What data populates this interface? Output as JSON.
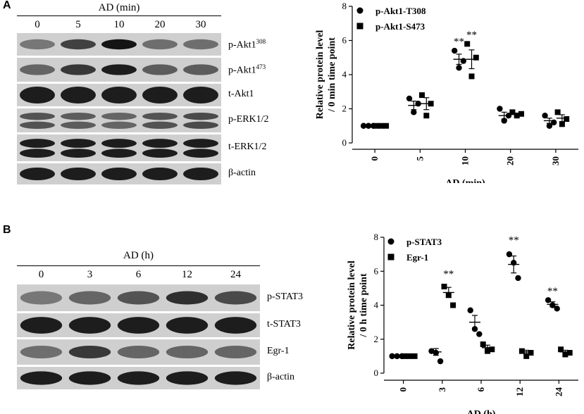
{
  "figure": {
    "panelA": {
      "letter": "A",
      "blot": {
        "title": "AD (min)",
        "lanes": [
          "0",
          "5",
          "10",
          "20",
          "30"
        ],
        "rows": [
          {
            "label": "p-Akt1",
            "sup": "308",
            "intensity": [
              0.45,
              0.75,
              1.0,
              0.5,
              0.5
            ],
            "thick": 0.45
          },
          {
            "label": "p-Akt1",
            "sup": "473",
            "intensity": [
              0.55,
              0.8,
              0.95,
              0.6,
              0.6
            ],
            "thick": 0.45
          },
          {
            "label": "t-Akt1",
            "sup": "",
            "intensity": [
              0.95,
              0.95,
              0.95,
              0.95,
              0.95
            ],
            "thick": 0.75
          },
          {
            "label": "p-ERK1/2",
            "sup": "",
            "intensity": [
              0.65,
              0.6,
              0.55,
              0.65,
              0.7
            ],
            "thick": 0.55,
            "double": true
          },
          {
            "label": "t-ERK1/2",
            "sup": "",
            "intensity": [
              0.95,
              0.95,
              0.95,
              0.95,
              0.95
            ],
            "thick": 0.6,
            "double": true
          },
          {
            "label": "β-actin",
            "sup": "",
            "intensity": [
              0.95,
              0.95,
              0.95,
              0.95,
              0.95
            ],
            "thick": 0.6
          }
        ]
      }
    },
    "panelB": {
      "letter": "B",
      "blot": {
        "title": "AD (h)",
        "lanes": [
          "0",
          "3",
          "6",
          "12",
          "24"
        ],
        "rows": [
          {
            "label": "p-STAT3",
            "sup": "",
            "intensity": [
              0.45,
              0.55,
              0.65,
              0.85,
              0.7
            ],
            "thick": 0.5
          },
          {
            "label": "t-STAT3",
            "sup": "",
            "intensity": [
              0.95,
              0.95,
              0.95,
              0.95,
              0.95
            ],
            "thick": 0.7
          },
          {
            "label": "Egr-1",
            "sup": "",
            "intensity": [
              0.5,
              0.8,
              0.55,
              0.55,
              0.55
            ],
            "thick": 0.5
          },
          {
            "label": "β-actin",
            "sup": "",
            "intensity": [
              0.95,
              0.95,
              0.95,
              0.95,
              0.95
            ],
            "thick": 0.6
          }
        ]
      }
    }
  },
  "chart_data": [
    {
      "type": "scatter",
      "ylabel": "Relative protein level\n/ 0 min time point",
      "xlabel": "AD (min)",
      "categories": [
        "0",
        "5",
        "10",
        "20",
        "30"
      ],
      "ylim": [
        0,
        8
      ],
      "yticks": [
        "0",
        "2",
        "4",
        "6",
        "8"
      ],
      "legend_position": "top-left",
      "series": [
        {
          "name": "p-Akt1-T308",
          "marker": "circle",
          "points": [
            [
              1,
              1,
              1
            ],
            [
              2.6,
              1.8,
              2.3
            ],
            [
              5.4,
              4.4,
              4.8
            ],
            [
              2.0,
              1.3,
              1.6
            ],
            [
              1.6,
              1.0,
              1.2
            ]
          ],
          "mean": [
            1.0,
            2.2,
            4.9,
            1.6,
            1.3
          ],
          "sem": [
            0,
            0.25,
            0.3,
            0.2,
            0.15
          ]
        },
        {
          "name": "p-Akt1-S473",
          "marker": "square",
          "points": [
            [
              1,
              1,
              1
            ],
            [
              2.8,
              1.6,
              2.3
            ],
            [
              5.8,
              3.9,
              5.0
            ],
            [
              1.8,
              1.6,
              1.7
            ],
            [
              1.8,
              1.1,
              1.4
            ]
          ],
          "mean": [
            1.0,
            2.3,
            4.9,
            1.7,
            1.45
          ],
          "sem": [
            0,
            0.35,
            0.55,
            0.05,
            0.2
          ]
        }
      ],
      "annotations": [
        {
          "category": "10",
          "series": "p-Akt1-T308",
          "text": "**",
          "y": 6.0
        },
        {
          "category": "10",
          "series": "p-Akt1-S473",
          "text": "**",
          "y": 6.4
        }
      ]
    },
    {
      "type": "scatter",
      "ylabel": "Relative protein level\n/ 0 h time point",
      "xlabel": "AD (h)",
      "categories": [
        "0",
        "3",
        "6",
        "12",
        "24"
      ],
      "ylim": [
        0,
        8
      ],
      "yticks": [
        "0",
        "2",
        "4",
        "6",
        "8"
      ],
      "legend_position": "top-left",
      "series": [
        {
          "name": "p-STAT3",
          "marker": "circle",
          "points": [
            [
              1,
              1,
              1
            ],
            [
              1.3,
              1.2,
              0.7
            ],
            [
              3.7,
              2.6,
              2.3
            ],
            [
              7.0,
              6.5,
              5.6
            ],
            [
              4.3,
              4.0,
              3.8
            ]
          ],
          "mean": [
            1.0,
            1.25,
            3.0,
            6.4,
            4.05
          ],
          "sem": [
            0,
            0.2,
            0.4,
            0.5,
            0.15
          ]
        },
        {
          "name": "Egr-1",
          "marker": "square",
          "points": [
            [
              1,
              1,
              1
            ],
            [
              5.1,
              4.6,
              4.0
            ],
            [
              1.7,
              1.3,
              1.4
            ],
            [
              1.3,
              1.0,
              1.2
            ],
            [
              1.4,
              1.1,
              1.2
            ]
          ],
          "mean": [
            1.0,
            4.75,
            1.5,
            1.25,
            1.25
          ],
          "sem": [
            0,
            0.3,
            0.15,
            0.1,
            0.1
          ]
        }
      ],
      "annotations": [
        {
          "category": "3",
          "series": "Egr-1",
          "text": "**",
          "y": 5.9
        },
        {
          "category": "12",
          "series": "p-STAT3",
          "text": "**",
          "y": 7.9
        },
        {
          "category": "24",
          "series": "p-STAT3",
          "text": "**",
          "y": 4.9
        }
      ]
    }
  ]
}
